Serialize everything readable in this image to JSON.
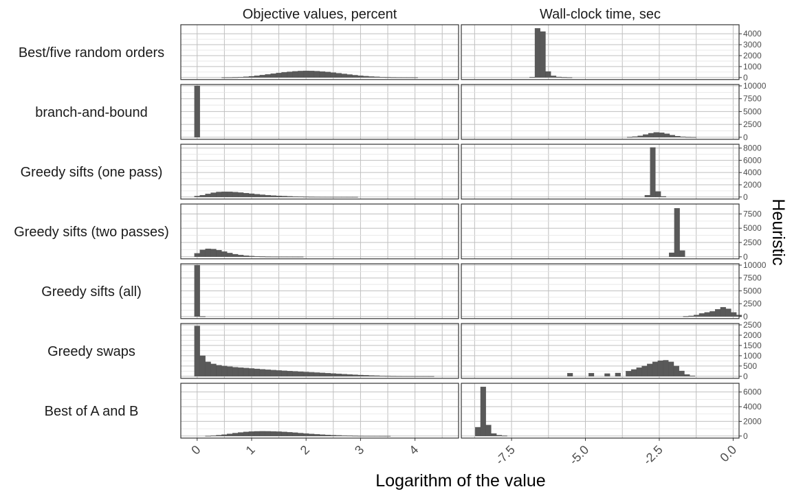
{
  "chart_data": {
    "type": "bar",
    "subtype": "faceted-histogram",
    "xlabel": "Logarithm of the value",
    "row_facet_label": "Heuristic",
    "grid": true,
    "colors": {
      "bar": "#595959",
      "panel_border": "#333333",
      "grid": "#bfbfbf",
      "background": "#ffffff"
    },
    "columns": [
      {
        "title": "Objective values, percent",
        "x_range": [
          -0.3,
          4.8
        ],
        "x_ticks": [
          0,
          1,
          2,
          3,
          4
        ],
        "x_tick_labels": [
          "0",
          "1",
          "2",
          "3",
          "4"
        ],
        "bin_width": 0.1
      },
      {
        "title": "Wall-clock time, sec",
        "x_range": [
          -9.2,
          0.2
        ],
        "x_ticks": [
          -7.5,
          -5.0,
          -2.5,
          0.0
        ],
        "x_tick_labels": [
          "-7.5",
          "-5.0",
          "-2.5",
          "0.0"
        ],
        "bin_width": 0.18
      }
    ],
    "rows": [
      {
        "label": "Best/five random orders",
        "ymax": 4700,
        "y_ticks": [
          0,
          1000,
          2000,
          3000,
          4000
        ],
        "y_tick_labels": [
          "0",
          "1000",
          "2000",
          "3000",
          "4000"
        ],
        "objective": [
          [
            0.5,
            5
          ],
          [
            0.6,
            10
          ],
          [
            0.7,
            20
          ],
          [
            0.8,
            40
          ],
          [
            0.9,
            70
          ],
          [
            1.0,
            110
          ],
          [
            1.1,
            160
          ],
          [
            1.2,
            220
          ],
          [
            1.3,
            280
          ],
          [
            1.4,
            350
          ],
          [
            1.5,
            410
          ],
          [
            1.6,
            470
          ],
          [
            1.7,
            520
          ],
          [
            1.8,
            560
          ],
          [
            1.9,
            590
          ],
          [
            2.0,
            610
          ],
          [
            2.1,
            600
          ],
          [
            2.2,
            580
          ],
          [
            2.3,
            545
          ],
          [
            2.4,
            500
          ],
          [
            2.5,
            450
          ],
          [
            2.6,
            390
          ],
          [
            2.7,
            330
          ],
          [
            2.8,
            270
          ],
          [
            2.9,
            210
          ],
          [
            3.0,
            160
          ],
          [
            3.1,
            120
          ],
          [
            3.2,
            85
          ],
          [
            3.3,
            60
          ],
          [
            3.4,
            40
          ],
          [
            3.5,
            25
          ],
          [
            3.6,
            15
          ],
          [
            3.7,
            10
          ],
          [
            3.8,
            6
          ],
          [
            3.9,
            3
          ],
          [
            4.0,
            2
          ]
        ],
        "time": [
          [
            -6.8,
            40
          ],
          [
            -6.62,
            4500
          ],
          [
            -6.44,
            4200
          ],
          [
            -6.26,
            550
          ],
          [
            -6.08,
            150
          ],
          [
            -5.9,
            50
          ],
          [
            -5.72,
            20
          ],
          [
            -5.54,
            5
          ]
        ]
      },
      {
        "label": "branch-and-bound",
        "ymax": 10000,
        "y_ticks": [
          0,
          2500,
          5000,
          7500,
          10000
        ],
        "y_tick_labels": [
          "0",
          "2500",
          "5000",
          "7500",
          "10000"
        ],
        "objective": [
          [
            0.0,
            10000
          ]
        ],
        "time": [
          [
            -3.5,
            40
          ],
          [
            -3.32,
            120
          ],
          [
            -3.14,
            280
          ],
          [
            -2.96,
            520
          ],
          [
            -2.78,
            780
          ],
          [
            -2.6,
            950
          ],
          [
            -2.42,
            880
          ],
          [
            -2.24,
            680
          ],
          [
            -2.06,
            420
          ],
          [
            -1.88,
            220
          ],
          [
            -1.7,
            100
          ],
          [
            -1.52,
            40
          ],
          [
            -1.34,
            15
          ]
        ]
      },
      {
        "label": "Greedy sifts (one pass)",
        "ymax": 8400,
        "y_ticks": [
          0,
          2000,
          4000,
          6000,
          8000
        ],
        "y_tick_labels": [
          "0",
          "2000",
          "4000",
          "6000",
          "8000"
        ],
        "objective": [
          [
            0.0,
            150
          ],
          [
            0.1,
            300
          ],
          [
            0.2,
            500
          ],
          [
            0.3,
            700
          ],
          [
            0.4,
            820
          ],
          [
            0.5,
            860
          ],
          [
            0.6,
            850
          ],
          [
            0.7,
            800
          ],
          [
            0.8,
            720
          ],
          [
            0.9,
            630
          ],
          [
            1.0,
            540
          ],
          [
            1.1,
            450
          ],
          [
            1.2,
            370
          ],
          [
            1.3,
            300
          ],
          [
            1.4,
            240
          ],
          [
            1.5,
            190
          ],
          [
            1.6,
            150
          ],
          [
            1.7,
            110
          ],
          [
            1.8,
            80
          ],
          [
            1.9,
            60
          ],
          [
            2.0,
            40
          ],
          [
            2.1,
            30
          ],
          [
            2.2,
            20
          ],
          [
            2.3,
            15
          ],
          [
            2.4,
            10
          ],
          [
            2.5,
            6
          ],
          [
            2.6,
            4
          ],
          [
            2.7,
            3
          ],
          [
            2.8,
            2
          ],
          [
            2.9,
            1
          ]
        ],
        "time": [
          [
            -2.9,
            300
          ],
          [
            -2.72,
            8100
          ],
          [
            -2.54,
            900
          ],
          [
            -2.36,
            100
          ]
        ]
      },
      {
        "label": "Greedy sifts (two passes)",
        "ymax": 9000,
        "y_ticks": [
          0,
          2500,
          5000,
          7500
        ],
        "y_tick_labels": [
          "0",
          "2500",
          "5000",
          "7500"
        ],
        "objective": [
          [
            0.0,
            600
          ],
          [
            0.1,
            1200
          ],
          [
            0.2,
            1400
          ],
          [
            0.3,
            1350
          ],
          [
            0.4,
            1150
          ],
          [
            0.5,
            900
          ],
          [
            0.6,
            650
          ],
          [
            0.7,
            450
          ],
          [
            0.8,
            300
          ],
          [
            0.9,
            190
          ],
          [
            1.0,
            120
          ],
          [
            1.1,
            75
          ],
          [
            1.2,
            45
          ],
          [
            1.3,
            28
          ],
          [
            1.4,
            16
          ],
          [
            1.5,
            10
          ],
          [
            1.6,
            6
          ],
          [
            1.7,
            4
          ],
          [
            1.8,
            2
          ],
          [
            1.9,
            1
          ]
        ],
        "time": [
          [
            -2.08,
            700
          ],
          [
            -1.9,
            8500
          ],
          [
            -1.72,
            1100
          ]
        ]
      },
      {
        "label": "Greedy sifts (all)",
        "ymax": 10000,
        "y_ticks": [
          0,
          2500,
          5000,
          7500,
          10000
        ],
        "y_tick_labels": [
          "0",
          "2500",
          "5000",
          "7500",
          "10000"
        ],
        "objective": [
          [
            0.0,
            10000
          ],
          [
            0.1,
            30
          ]
        ],
        "time": [
          [
            -1.6,
            40
          ],
          [
            -1.42,
            120
          ],
          [
            -1.24,
            300
          ],
          [
            -1.06,
            600
          ],
          [
            -0.88,
            800
          ],
          [
            -0.7,
            1000
          ],
          [
            -0.52,
            1400
          ],
          [
            -0.34,
            1800
          ],
          [
            -0.16,
            1500
          ],
          [
            0.02,
            800
          ],
          [
            0.2,
            300
          ]
        ]
      },
      {
        "label": "Greedy swaps",
        "ymax": 2500,
        "y_ticks": [
          0,
          500,
          1000,
          1500,
          2000,
          2500
        ],
        "y_tick_labels": [
          "0",
          "500",
          "1000",
          "1500",
          "2000",
          "2500"
        ],
        "objective": [
          [
            0.0,
            2450
          ],
          [
            0.1,
            1000
          ],
          [
            0.2,
            700
          ],
          [
            0.3,
            600
          ],
          [
            0.4,
            540
          ],
          [
            0.5,
            500
          ],
          [
            0.6,
            470
          ],
          [
            0.7,
            440
          ],
          [
            0.8,
            420
          ],
          [
            0.9,
            400
          ],
          [
            1.0,
            380
          ],
          [
            1.1,
            360
          ],
          [
            1.2,
            340
          ],
          [
            1.3,
            320
          ],
          [
            1.4,
            300
          ],
          [
            1.5,
            285
          ],
          [
            1.6,
            270
          ],
          [
            1.7,
            255
          ],
          [
            1.8,
            240
          ],
          [
            1.9,
            225
          ],
          [
            2.0,
            210
          ],
          [
            2.1,
            195
          ],
          [
            2.2,
            180
          ],
          [
            2.3,
            165
          ],
          [
            2.4,
            150
          ],
          [
            2.5,
            135
          ],
          [
            2.6,
            120
          ],
          [
            2.7,
            105
          ],
          [
            2.8,
            90
          ],
          [
            2.9,
            75
          ],
          [
            3.0,
            60
          ],
          [
            3.1,
            50
          ],
          [
            3.2,
            40
          ],
          [
            3.3,
            30
          ],
          [
            3.4,
            22
          ],
          [
            3.5,
            15
          ],
          [
            3.6,
            10
          ],
          [
            3.7,
            7
          ],
          [
            3.8,
            5
          ],
          [
            3.9,
            4
          ],
          [
            4.0,
            3
          ],
          [
            4.1,
            2
          ],
          [
            4.2,
            2
          ],
          [
            4.3,
            1
          ]
        ],
        "time": [
          [
            -5.52,
            150
          ],
          [
            -4.8,
            150
          ],
          [
            -4.26,
            130
          ],
          [
            -3.9,
            160
          ],
          [
            -3.54,
            250
          ],
          [
            -3.36,
            330
          ],
          [
            -3.18,
            420
          ],
          [
            -3.0,
            500
          ],
          [
            -2.82,
            600
          ],
          [
            -2.64,
            700
          ],
          [
            -2.46,
            760
          ],
          [
            -2.28,
            780
          ],
          [
            -2.1,
            700
          ],
          [
            -1.92,
            500
          ],
          [
            -1.74,
            260
          ],
          [
            -1.56,
            90
          ],
          [
            -1.38,
            25
          ]
        ]
      },
      {
        "label": "Best of A and B",
        "ymax": 7000,
        "y_ticks": [
          0,
          2000,
          4000,
          6000
        ],
        "y_tick_labels": [
          "0",
          "2000",
          "4000",
          "6000"
        ],
        "objective": [
          [
            0.2,
            20
          ],
          [
            0.3,
            60
          ],
          [
            0.4,
            120
          ],
          [
            0.5,
            200
          ],
          [
            0.6,
            300
          ],
          [
            0.7,
            400
          ],
          [
            0.8,
            490
          ],
          [
            0.9,
            560
          ],
          [
            1.0,
            610
          ],
          [
            1.1,
            640
          ],
          [
            1.2,
            650
          ],
          [
            1.3,
            645
          ],
          [
            1.4,
            630
          ],
          [
            1.5,
            600
          ],
          [
            1.6,
            560
          ],
          [
            1.7,
            510
          ],
          [
            1.8,
            460
          ],
          [
            1.9,
            400
          ],
          [
            2.0,
            345
          ],
          [
            2.1,
            290
          ],
          [
            2.2,
            240
          ],
          [
            2.3,
            195
          ],
          [
            2.4,
            155
          ],
          [
            2.5,
            120
          ],
          [
            2.6,
            90
          ],
          [
            2.7,
            65
          ],
          [
            2.8,
            45
          ],
          [
            2.9,
            30
          ],
          [
            3.0,
            20
          ],
          [
            3.1,
            12
          ],
          [
            3.2,
            7
          ],
          [
            3.3,
            4
          ],
          [
            3.4,
            2
          ],
          [
            3.5,
            1
          ]
        ],
        "time": [
          [
            -8.64,
            1200
          ],
          [
            -8.46,
            6700
          ],
          [
            -8.28,
            1500
          ],
          [
            -8.1,
            350
          ],
          [
            -7.92,
            120
          ],
          [
            -7.74,
            40
          ]
        ]
      }
    ]
  }
}
